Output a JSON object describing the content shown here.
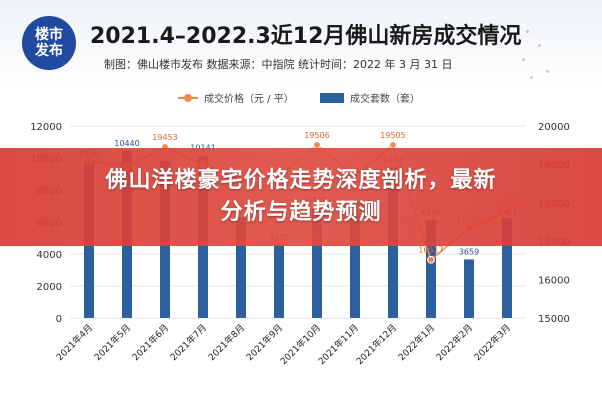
{
  "header": {
    "logo_line1": "楼市",
    "logo_line2": "发布",
    "title": "2021.4–2022.3近12月佛山新房成交情况",
    "subtitle": "制图：佛山楼市发布  数据来源：中指院  统计时间：2022 年 3 月 31 日"
  },
  "banner": {
    "line1": "佛山洋楼豪宅价格走势深度剖析，最新",
    "line2": "分析与趋势预测"
  },
  "colors": {
    "bar": "#2d5f9e",
    "line": "#f08a4b",
    "banner": "#d63b34"
  },
  "chart_data": {
    "type": "bar",
    "categories": [
      "2021年4月",
      "2021年5月",
      "2021年6月",
      "2021年7月",
      "2021年8月",
      "2021年9月",
      "2021年10月",
      "2021年11月",
      "2021年12月",
      "2022年1月",
      "2022年2月",
      "2022年3月"
    ],
    "series": [
      {
        "name": "成交套数（套）",
        "type": "bar",
        "axis": "left",
        "values": [
          9786,
          10440,
          9800,
          10141,
          6300,
          4578,
          6868,
          6595,
          9405,
          6138,
          3659,
          6241
        ],
        "labels": [
          "9786",
          "10440",
          "",
          "10141",
          "",
          "4578",
          "6868",
          "6595",
          "9405",
          "6138",
          "3659",
          "6241"
        ]
      },
      {
        "name": "成交价格（元 / 平）",
        "type": "line",
        "axis": "right",
        "values": [
          19100,
          18950,
          19453,
          19000,
          18600,
          18700,
          19506,
          18700,
          19505,
          16517,
          17345,
          17757
        ],
        "labels": [
          "",
          "",
          "19453",
          "",
          "",
          "",
          "19506",
          "",
          "19505",
          "16517",
          "17345",
          "17757"
        ]
      }
    ],
    "y_left": {
      "ticks": [
        "0",
        "2000",
        "4000",
        "6000",
        "8000",
        "10000",
        "12000"
      ],
      "ylim": [
        0,
        12000
      ]
    },
    "y_right": {
      "ticks": [
        "15000",
        "16000",
        "17000",
        "18000",
        "19000",
        "20000"
      ],
      "ylim": [
        15000,
        20000
      ]
    },
    "grid": true,
    "legend_position": "top-center"
  }
}
